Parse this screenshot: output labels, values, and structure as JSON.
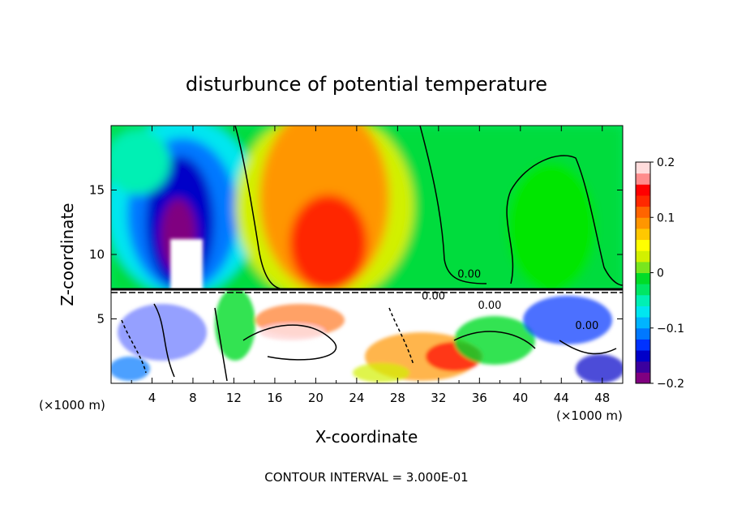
{
  "chart_data": {
    "type": "heatmap",
    "title": "disturbunce of potential temperature",
    "xlabel": "X-coordinate",
    "ylabel": "Z-coordinate",
    "x_unit_left": "(×1000 m)",
    "x_unit_right": "(×1000 m)",
    "footer": "CONTOUR INTERVAL = 3.000E-01",
    "xlim": [
      0,
      50
    ],
    "ylim": [
      0,
      20
    ],
    "xticks": [
      4,
      8,
      12,
      16,
      20,
      24,
      28,
      32,
      36,
      40,
      44,
      48
    ],
    "yticks": [
      5,
      10,
      15
    ],
    "colorbar": {
      "min": -0.2,
      "max": 0.2,
      "ticks": [
        {
          "value": 0.2,
          "label": "0.2"
        },
        {
          "value": 0.1,
          "label": "0.1"
        },
        {
          "value": 0,
          "label": "0"
        },
        {
          "value": -0.1,
          "label": "−0.1"
        },
        {
          "value": -0.2,
          "label": "−0.2"
        }
      ],
      "colors": [
        "#800080",
        "#3b009e",
        "#0000c8",
        "#0032ff",
        "#0078ff",
        "#00b4ff",
        "#00e6f0",
        "#00f0b4",
        "#00e664",
        "#00dc28",
        "#78e61e",
        "#d2f000",
        "#ffff00",
        "#ffc800",
        "#ff9600",
        "#ff6400",
        "#ff2800",
        "#ff0000",
        "#ff8c8c",
        "#ffdcdc"
      ]
    },
    "contour_labels": [
      {
        "x": 35,
        "z": 8.2,
        "text": "0.00"
      },
      {
        "x": 46.5,
        "z": 4.2,
        "text": "0.00"
      },
      {
        "x": 37,
        "z": 5.8,
        "text": "0.00"
      },
      {
        "x": 31.5,
        "z": 6.5,
        "text": "0.00"
      }
    ]
  }
}
